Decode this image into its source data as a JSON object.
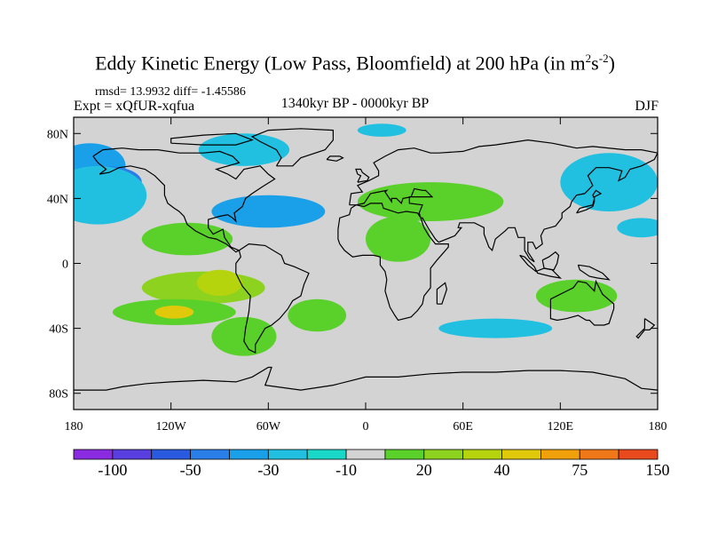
{
  "title_main": "Eddy Kinetic Energy (Low Pass, Bloomfield) at 200 hPa (in m",
  "title_sup1": "2",
  "title_mid": "s",
  "title_sup2": "-2",
  "title_end": ")",
  "rmsd_text": "rmsd= 13.9932 diff= -1.45586",
  "expt_text": "Expt = xQfUR-xqfua",
  "period_text": "1340kyr BP - 0000kyr BP",
  "season_text": "DJF",
  "map": {
    "lon_range": [
      -180,
      180
    ],
    "lat_range": [
      -90,
      90
    ],
    "x_ticks": [
      {
        "lon": -180,
        "label": "180"
      },
      {
        "lon": -120,
        "label": "120W"
      },
      {
        "lon": -60,
        "label": "60W"
      },
      {
        "lon": 0,
        "label": "0"
      },
      {
        "lon": 60,
        "label": "60E"
      },
      {
        "lon": 120,
        "label": "120E"
      },
      {
        "lon": 180,
        "label": "180"
      }
    ],
    "y_ticks": [
      {
        "lat": 80,
        "label": "80N"
      },
      {
        "lat": 40,
        "label": "40N"
      },
      {
        "lat": 0,
        "label": "0"
      },
      {
        "lat": -40,
        "label": "40S"
      },
      {
        "lat": -80,
        "label": "80S"
      }
    ],
    "background_color": "#d3d3d3",
    "coast_color": "#000000"
  },
  "colorbar": {
    "colors": [
      "#8a2be2",
      "#5a3fe0",
      "#2a5ae0",
      "#2a7ee8",
      "#1aa0e8",
      "#22c0e0",
      "#1ad8c8",
      "#d3d3d3",
      "#5ad02a",
      "#8cd21e",
      "#b6d40e",
      "#e0c80a",
      "#f0a00a",
      "#f07818",
      "#e84a1e"
    ],
    "labels": [
      {
        "index": 1,
        "label": "-100"
      },
      {
        "index": 3,
        "label": "-50"
      },
      {
        "index": 5,
        "label": "-30"
      },
      {
        "index": 7,
        "label": "-10"
      },
      {
        "index": 9,
        "label": "20"
      },
      {
        "index": 11,
        "label": "40"
      },
      {
        "index": 13,
        "label": "75"
      },
      {
        "index": 15,
        "label": "150"
      }
    ]
  },
  "regions": [
    {
      "lon": -170,
      "lat": 60,
      "rx": 22,
      "ry": 14,
      "level": 5
    },
    {
      "lon": -160,
      "lat": 50,
      "rx": 22,
      "ry": 10,
      "level": 4
    },
    {
      "lon": -175,
      "lat": 35,
      "rx": 12,
      "ry": 8,
      "level": 4
    },
    {
      "lon": -165,
      "lat": 42,
      "rx": 30,
      "ry": 18,
      "level": 6
    },
    {
      "lon": -60,
      "lat": 32,
      "rx": 35,
      "ry": 10,
      "level": 5
    },
    {
      "lon": -75,
      "lat": 70,
      "rx": 28,
      "ry": 10,
      "level": 6
    },
    {
      "lon": 10,
      "lat": 82,
      "rx": 15,
      "ry": 4,
      "level": 6
    },
    {
      "lon": 150,
      "lat": 50,
      "rx": 30,
      "ry": 18,
      "level": 6
    },
    {
      "lon": 170,
      "lat": 22,
      "rx": 15,
      "ry": 6,
      "level": 6
    },
    {
      "lon": 80,
      "lat": -40,
      "rx": 35,
      "ry": 6,
      "level": 6
    },
    {
      "lon": 40,
      "lat": 38,
      "rx": 45,
      "ry": 12,
      "level": 9
    },
    {
      "lon": 20,
      "lat": 15,
      "rx": 20,
      "ry": 14,
      "level": 9
    },
    {
      "lon": 130,
      "lat": -20,
      "rx": 25,
      "ry": 10,
      "level": 9
    },
    {
      "lon": -110,
      "lat": 15,
      "rx": 28,
      "ry": 10,
      "level": 9
    },
    {
      "lon": -100,
      "lat": -15,
      "rx": 38,
      "ry": 10,
      "level": 10
    },
    {
      "lon": -90,
      "lat": -12,
      "rx": 14,
      "ry": 8,
      "level": 11
    },
    {
      "lon": -118,
      "lat": -30,
      "rx": 38,
      "ry": 8,
      "level": 9
    },
    {
      "lon": -118,
      "lat": -30,
      "rx": 12,
      "ry": 4,
      "level": 12
    },
    {
      "lon": -75,
      "lat": -45,
      "rx": 20,
      "ry": 12,
      "level": 9
    },
    {
      "lon": -30,
      "lat": -32,
      "rx": 18,
      "ry": 10,
      "level": 9
    }
  ]
}
